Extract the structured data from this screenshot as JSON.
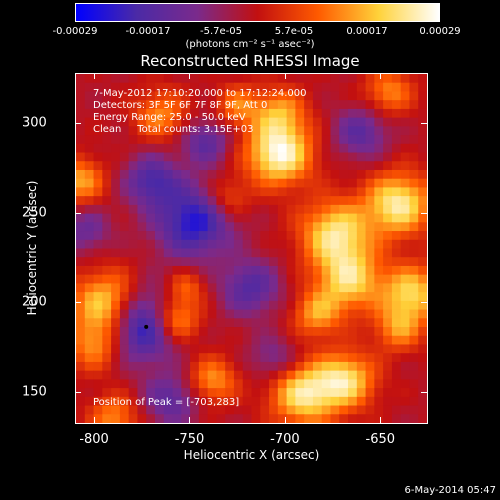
{
  "colorbar": {
    "ticks": [
      "-0.00029",
      "-0.00017",
      "-5.7e-05",
      "5.7e-05",
      "0.00017",
      "0.00029"
    ],
    "units": "(photons cm⁻² s⁻¹ asec⁻²)",
    "colors": [
      "#0000ff",
      "#4b2aa6",
      "#7a2a8c",
      "#c21010",
      "#ff5a00",
      "#ffd23a",
      "#ffffff"
    ]
  },
  "chart_data": {
    "type": "heatmap",
    "title": "Reconstructed RHESSI Image",
    "xlabel": "Heliocentric X (arcsec)",
    "ylabel": "Heliocentric Y (arcsec)",
    "xlim": [
      -810,
      -625
    ],
    "ylim": [
      132,
      328
    ],
    "xticks": [
      "-800",
      "-750",
      "-700",
      "-650"
    ],
    "yticks": [
      "150",
      "200",
      "250",
      "300"
    ],
    "xtick_values": [
      -800,
      -750,
      -700,
      -650
    ],
    "ytick_values": [
      150,
      200,
      250,
      300
    ],
    "value_range": [
      -0.00029,
      0.00029
    ],
    "annotations": {
      "time": "7-May-2012 17:10:20.000 to 17:12:24.000",
      "detectors": "Detectors: 3F 5F 6F 7F 8F 9F, Att 0",
      "energy": "Energy Range: 25.0 - 50.0 keV",
      "method": "Clean     Total counts: 3.15E+03",
      "peak": "Position of Peak = [-703,283]"
    },
    "peak": [
      -703,
      283
    ],
    "marker": [
      -773,
      186
    ],
    "blobs": [
      {
        "x": -703,
        "y": 283,
        "v": 1.0,
        "r": 12
      },
      {
        "x": -703,
        "y": 306,
        "v": 0.55,
        "r": 10
      },
      {
        "x": -765,
        "y": 305,
        "v": 0.5,
        "r": 10
      },
      {
        "x": -725,
        "y": 310,
        "v": 0.45,
        "r": 8
      },
      {
        "x": -645,
        "y": 318,
        "v": 0.5,
        "r": 9
      },
      {
        "x": -793,
        "y": 198,
        "v": 0.9,
        "r": 13
      },
      {
        "x": -800,
        "y": 175,
        "v": 0.5,
        "r": 10
      },
      {
        "x": -758,
        "y": 190,
        "v": 0.8,
        "r": 9
      },
      {
        "x": -752,
        "y": 208,
        "v": 0.4,
        "r": 7
      },
      {
        "x": -673,
        "y": 238,
        "v": 0.85,
        "r": 13
      },
      {
        "x": -666,
        "y": 212,
        "v": 0.75,
        "r": 12
      },
      {
        "x": -683,
        "y": 193,
        "v": 0.55,
        "r": 9
      },
      {
        "x": -640,
        "y": 255,
        "v": 0.9,
        "r": 12
      },
      {
        "x": -633,
        "y": 205,
        "v": 0.75,
        "r": 11
      },
      {
        "x": -640,
        "y": 185,
        "v": 0.5,
        "r": 9
      },
      {
        "x": -690,
        "y": 148,
        "v": 0.85,
        "r": 12
      },
      {
        "x": -668,
        "y": 156,
        "v": 0.8,
        "r": 11
      },
      {
        "x": -738,
        "y": 156,
        "v": 0.55,
        "r": 9
      },
      {
        "x": -808,
        "y": 268,
        "v": 0.6,
        "r": 9
      },
      {
        "x": -790,
        "y": 135,
        "v": 0.5,
        "r": 9
      },
      {
        "x": -730,
        "y": 258,
        "v": 0.4,
        "r": 8
      },
      {
        "x": -775,
        "y": 188,
        "v": -1.0,
        "r": 14
      },
      {
        "x": -748,
        "y": 245,
        "v": -0.8,
        "r": 14
      },
      {
        "x": -770,
        "y": 268,
        "v": -0.6,
        "r": 10
      },
      {
        "x": -742,
        "y": 290,
        "v": -0.5,
        "r": 9
      },
      {
        "x": -660,
        "y": 295,
        "v": -0.5,
        "r": 10
      },
      {
        "x": -805,
        "y": 240,
        "v": -0.4,
        "r": 9
      },
      {
        "x": -718,
        "y": 208,
        "v": -0.55,
        "r": 11
      },
      {
        "x": -760,
        "y": 145,
        "v": -0.5,
        "r": 10
      },
      {
        "x": -706,
        "y": 168,
        "v": -0.35,
        "r": 9
      }
    ]
  },
  "footer": "6-May-2014 05:47"
}
